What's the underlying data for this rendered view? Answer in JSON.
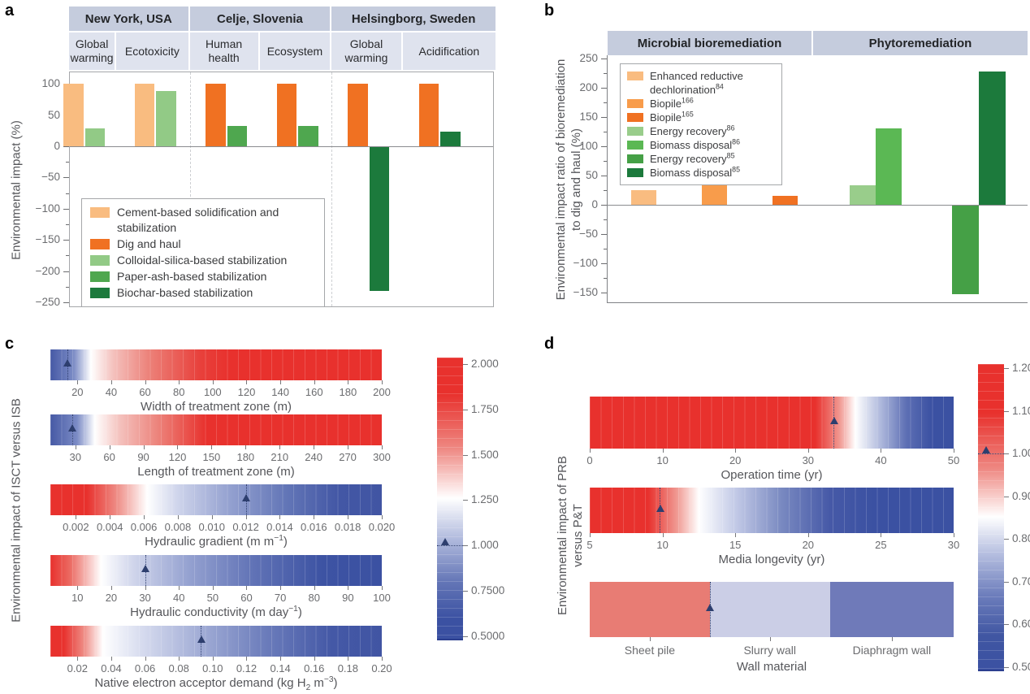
{
  "figure": {
    "background": "#ffffff",
    "colors": {
      "red_extreme": "#E8312D",
      "blue_extreme": "#3B51A2",
      "marker_navy": "#2D3E6E",
      "header_band_dark": "#C5CCDD",
      "header_band_light": "#DFE3EE",
      "axis_text": "#6B6C6F",
      "title_text": "#55565A",
      "plot_border": "#A5A7AA"
    }
  },
  "chart_data": [
    {
      "panel_letter": "a",
      "type": "bar",
      "ylabel_lines": [
        "Environmental impact (%)"
      ],
      "ylim": [
        -260,
        120
      ],
      "yticks": [
        100,
        50,
        0,
        -50,
        -100,
        -150,
        -200,
        -250
      ],
      "location_groups": [
        {
          "label": "New York, USA",
          "categories": [
            "Global warming",
            "Ecotoxicity"
          ]
        },
        {
          "label": "Celje, Slovenia",
          "categories": [
            "Human health",
            "Ecosystem"
          ]
        },
        {
          "label": "Helsingborg, Sweden",
          "categories": [
            "Global warming",
            "Acidification"
          ]
        }
      ],
      "legend": [
        {
          "label": "Cement-based solidification and stabilization",
          "color": "#F9BC80"
        },
        {
          "label": "Dig and haul",
          "color": "#F07122"
        },
        {
          "label": "Colloidal-silica-based stabilization",
          "color": "#92CA86"
        },
        {
          "label": "Paper-ash-based stabilization",
          "color": "#4FA74F"
        },
        {
          "label": "Biochar-based stabilization",
          "color": "#1C7A3C"
        }
      ],
      "groups": [
        {
          "category": "Global warming",
          "bars": [
            {
              "series": "Cement-based solidification and stabilization",
              "value": 100
            },
            {
              "series": "Colloidal-silica-based stabilization",
              "value": 28
            }
          ]
        },
        {
          "category": "Ecotoxicity",
          "bars": [
            {
              "series": "Cement-based solidification and stabilization",
              "value": 100
            },
            {
              "series": "Colloidal-silica-based stabilization",
              "value": 88
            }
          ]
        },
        {
          "category": "Human health",
          "bars": [
            {
              "series": "Dig and haul",
              "value": 100
            },
            {
              "series": "Paper-ash-based stabilization",
              "value": 33
            }
          ]
        },
        {
          "category": "Ecosystem",
          "bars": [
            {
              "series": "Dig and haul",
              "value": 100
            },
            {
              "series": "Paper-ash-based stabilization",
              "value": 33
            }
          ]
        },
        {
          "category": "Global warming",
          "bars": [
            {
              "series": "Dig and haul",
              "value": 100
            },
            {
              "series": "Biochar-based stabilization",
              "value": -230
            }
          ]
        },
        {
          "category": "Acidification",
          "bars": [
            {
              "series": "Dig and haul",
              "value": 100
            },
            {
              "series": "Biochar-based stabilization",
              "value": 23
            }
          ]
        }
      ]
    },
    {
      "panel_letter": "b",
      "type": "bar",
      "ylabel_lines": [
        "Environmental impact ratio of bioremediation",
        "to dig and haul (%)"
      ],
      "ylim": [
        -167,
        256
      ],
      "yticks": [
        250,
        200,
        150,
        100,
        50,
        0,
        -50,
        -100,
        -150
      ],
      "section_headers": [
        "Microbial bioremediation",
        "Phytoremediation"
      ],
      "legend": [
        {
          "label": "Enhanced reductive dechlorination",
          "sup": "84",
          "color": "#F9BC80"
        },
        {
          "label": "Biopile",
          "sup": "166",
          "color": "#F89C4B"
        },
        {
          "label": "Biopile",
          "sup": "165",
          "color": "#F07122"
        },
        {
          "label": "Energy recovery",
          "sup": "86",
          "color": "#99CD8B"
        },
        {
          "label": "Biomass disposal",
          "sup": "86",
          "color": "#5BB854"
        },
        {
          "label": "Energy recovery",
          "sup": "85",
          "color": "#45A046"
        },
        {
          "label": "Biomass disposal",
          "sup": "85",
          "color": "#1C7A3C"
        }
      ],
      "bars": [
        {
          "series": "Enhanced reductive dechlorination",
          "sup": "84",
          "group": "Microbial bioremediation",
          "value": 25
        },
        {
          "series": "Biopile",
          "sup": "166",
          "group": "Microbial bioremediation",
          "value": 48
        },
        {
          "series": "Biopile",
          "sup": "165",
          "group": "Microbial bioremediation",
          "value": 15
        },
        {
          "series": "Energy recovery",
          "sup": "86",
          "group": "Phytoremediation",
          "value": 34
        },
        {
          "series": "Biomass disposal",
          "sup": "86",
          "group": "Phytoremediation",
          "value": 130
        },
        {
          "series": "Energy recovery",
          "sup": "85",
          "group": "Phytoremediation",
          "value": -152
        },
        {
          "series": "Biomass disposal",
          "sup": "85",
          "group": "Phytoremediation",
          "value": 228
        }
      ]
    },
    {
      "panel_letter": "c",
      "type": "heatmap",
      "ylabel_lines": [
        "Environmental impact of ISCT versus ISB"
      ],
      "strips": [
        {
          "title": "Width of treatment zone (m)",
          "lo": 4,
          "hi": 200,
          "marker": 14,
          "white_value": 28,
          "ticks": [
            "20",
            "40",
            "60",
            "80",
            "100",
            "120",
            "140",
            "160",
            "180",
            "200"
          ],
          "gradient": "linear-gradient(90deg,#4659A5 0%,#7B8BC5 7%,#FFFFFF 12.2%,#F4C1BD 19%,#EC8078 30%,#E8413C 45%,#E8312D 54%,#E8312D 100%)"
        },
        {
          "title": "Length of treatment zone (m)",
          "lo": 8,
          "hi": 300,
          "marker": 27,
          "white_value": 47,
          "ticks": [
            "30",
            "60",
            "90",
            "120",
            "150",
            "180",
            "210",
            "240",
            "270",
            "300"
          ],
          "gradient": "linear-gradient(90deg,#4659A5 0%,#7B8BC5 8%,#FFFFFF 13.4%,#F4C1BD 21%,#EC8078 33%,#E8312D 47%,#E8312D 100%)"
        },
        {
          "title": "Hydraulic gradient (m m^−1^)",
          "lo": 0.0005,
          "hi": 0.02,
          "marker": 0.012,
          "white_value": 0.0062,
          "ticks": [
            "0.002",
            "0.004",
            "0.006",
            "0.008",
            "0.010",
            "0.012",
            "0.014",
            "0.016",
            "0.018",
            "0.020"
          ],
          "gradient": "linear-gradient(90deg,#E8312D 0%,#E8312D 11%,#EE8C85 20%,#FFFFFF 29.2%,#CCD2EA 39%,#94A1D0 54%,#6376B7 71%,#4357A5 87%,#4155A3 100%)"
        },
        {
          "title": "Hydraulic conductivity (m day^−1^)",
          "lo": 2,
          "hi": 100,
          "marker": 30,
          "white_value": 17,
          "ticks": [
            "10",
            "20",
            "30",
            "40",
            "50",
            "60",
            "70",
            "80",
            "90",
            "100"
          ],
          "gradient": "linear-gradient(90deg,#E8312D 0%,#EB6B63 6%,#FFFFFF 15.3%,#D0D5EB 25%,#94A1D0 42%,#5F71B5 62%,#3D53A3 82%,#3B51A2 100%)"
        },
        {
          "title": "Native electron acceptor demand (kg H~2~ m^−3^)",
          "lo": 0.004,
          "hi": 0.2,
          "marker": 0.093,
          "white_value": 0.035,
          "ticks": [
            "0.02",
            "0.04",
            "0.06",
            "0.08",
            "0.10",
            "0.12",
            "0.14",
            "0.16",
            "0.18",
            "0.20"
          ],
          "gradient": "linear-gradient(90deg,#E8312D 0%,#E8312D 4%,#EE8A83 10%,#FFFFFF 15.8%,#D5DAEE 28%,#A2ADD6 45%,#6B7CBB 65%,#4458A6 85%,#4155A3 100%)"
        }
      ],
      "colorbar": {
        "tick_labels": [
          "2.000",
          "1.750",
          "1.500",
          "1.250",
          "1.000",
          "0.7500",
          "0.5000"
        ],
        "marker_value": 1.0,
        "top_value": 2.036,
        "bottom_value": 0.477,
        "gradient": "linear-gradient(180deg,#E8312D 0%,#E8312D 13%,#EE8680 32%,#FFFFFF 50%,#AEB8DC 65%,#6375B6 80%,#3B51A2 93%,#3B51A2 100%)"
      }
    },
    {
      "panel_letter": "d",
      "type": "heatmap",
      "ylabel_lines": [
        "Environmental impact of PRB",
        "versus P&T"
      ],
      "strips": [
        {
          "title": "Operation time (yr)",
          "lo": 0,
          "hi": 50,
          "marker": 33.5,
          "white_value": 36.5,
          "ticks": [
            "0",
            "10",
            "20",
            "30",
            "40",
            "50"
          ],
          "gradient": "linear-gradient(90deg,#E8312D 0%,#E8312D 62%,#F0958E 68.5%,#FFFFFF 73%,#AEB8DC 80%,#5D6FB4 87%,#3B51A2 94%,#3B51A2 100%)"
        },
        {
          "title": "Media longevity (yr)",
          "lo": 5,
          "hi": 30,
          "marker": 9.8,
          "white_value": 12.5,
          "ticks": [
            "5",
            "10",
            "15",
            "20",
            "25",
            "30"
          ],
          "gradient": "linear-gradient(90deg,#E8312D 0%,#E8312D 16%,#F09A93 24%,#FFFFFF 30%,#C3CAE7 40%,#7888C0 53%,#4659A7 66%,#3B51A2 78%,#3B51A2 100%)"
        }
      ],
      "categorical_strip": {
        "title": "Wall material",
        "segments": [
          {
            "label": "Sheet pile",
            "color": "#E87C74",
            "from": 0,
            "to": 0.33
          },
          {
            "label": "Slurry wall",
            "color": "#CBCEE6",
            "from": 0.33,
            "to": 0.66
          },
          {
            "label": "Diaphragm wall",
            "color": "#6F7AB9",
            "from": 0.66,
            "to": 1
          }
        ],
        "marker_fraction": 0.33
      },
      "colorbar": {
        "tick_labels": [
          "1.20",
          "1.10",
          "1.00",
          "0.90",
          "0.80",
          "0.70",
          "0.60",
          "0.50"
        ],
        "marker_value": 1.0,
        "top_value": 1.21,
        "bottom_value": 0.49,
        "gradient": "linear-gradient(180deg,#E8312D 0%,#E8312D 16%,#EE8680 34%,#FFFFFF 50%,#B6BFE0 62%,#6B7CBB 76%,#4056A2 89%,#3B51A2 100%)"
      }
    }
  ]
}
